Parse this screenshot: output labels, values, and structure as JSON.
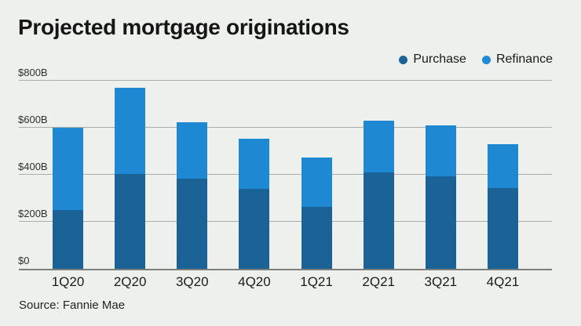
{
  "title": "Projected mortgage originations",
  "source": "Source: Fannie Mae",
  "legend": {
    "items": [
      {
        "label": "Purchase",
        "color": "#1b6397",
        "icon": "legend-dot"
      },
      {
        "label": "Refinance",
        "color": "#1f8ad6",
        "icon": "legend-dot"
      }
    ]
  },
  "colors": {
    "background": "#eef0ee",
    "purchase": "#1b6397",
    "refinance": "#1e88d2",
    "gridline": "#abadac",
    "axis_line": "#7d7f7e",
    "title_text": "#161616"
  },
  "chart_data": {
    "type": "bar",
    "stacked": true,
    "title": "Projected mortgage originations",
    "categories": [
      "1Q20",
      "2Q20",
      "3Q20",
      "4Q20",
      "1Q21",
      "2Q21",
      "3Q21",
      "4Q21"
    ],
    "series": [
      {
        "name": "Purchase",
        "color": "#1b6397",
        "values": [
          250,
          405,
          385,
          340,
          265,
          410,
          395,
          345
        ]
      },
      {
        "name": "Refinance",
        "color": "#1e88d2",
        "values": [
          350,
          365,
          240,
          215,
          210,
          220,
          215,
          185
        ]
      }
    ],
    "units": "billions USD",
    "xlabel": "",
    "ylabel": "",
    "ylim": [
      0,
      800
    ],
    "yticks": [
      0,
      200,
      400,
      600,
      800
    ],
    "ytick_labels": [
      "$0",
      "$200B",
      "$400B",
      "$600B",
      "$800B"
    ],
    "grid": true,
    "legend_position": "top-right"
  }
}
